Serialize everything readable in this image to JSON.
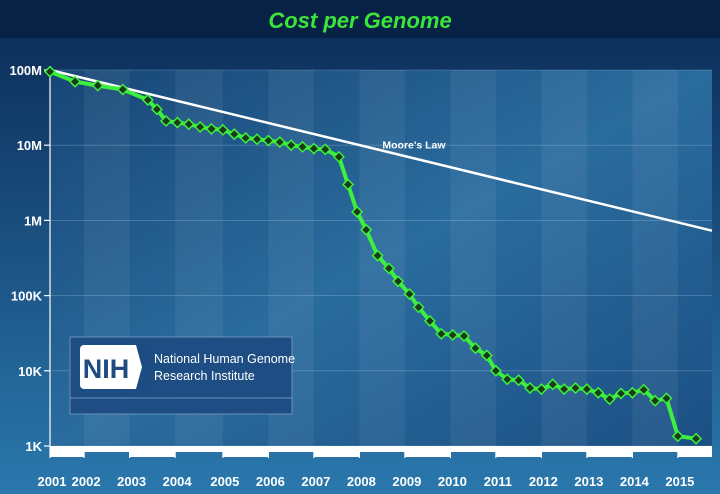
{
  "colors": {
    "bg_top": "#0b2a55",
    "bg_bottom": "#2a78ad",
    "title": "#39e639",
    "series": "#3df03d",
    "marker": "#1a3a1a",
    "moore": "#ffffff",
    "nih_box": "#1e4f86"
  },
  "nih": {
    "logo_text": "NIH",
    "line1": "National Human Genome",
    "line2": "Research Institute"
  },
  "chart_data": {
    "type": "line",
    "title": "Cost per Genome",
    "yscale": "log",
    "ylim": [
      1000,
      100000000
    ],
    "xlim": [
      2001.0,
      2015.55
    ],
    "yticks": [
      {
        "value": 1000,
        "label": "1K"
      },
      {
        "value": 10000,
        "label": "10K"
      },
      {
        "value": 100000,
        "label": "100K"
      },
      {
        "value": 1000000,
        "label": "1M"
      },
      {
        "value": 10000000,
        "label": "10M"
      },
      {
        "value": 100000000,
        "label": "100M"
      }
    ],
    "xticks": [
      {
        "value": 2001.0,
        "label": "2001"
      },
      {
        "value": 2001.75,
        "label": "2002"
      },
      {
        "value": 2002.75,
        "label": "2003"
      },
      {
        "value": 2003.75,
        "label": "2004"
      },
      {
        "value": 2004.8,
        "label": "2005"
      },
      {
        "value": 2005.8,
        "label": "2006"
      },
      {
        "value": 2006.8,
        "label": "2007"
      },
      {
        "value": 2007.8,
        "label": "2008"
      },
      {
        "value": 2008.8,
        "label": "2009"
      },
      {
        "value": 2009.8,
        "label": "2010"
      },
      {
        "value": 2010.8,
        "label": "2011"
      },
      {
        "value": 2011.8,
        "label": "2012"
      },
      {
        "value": 2012.8,
        "label": "2013"
      },
      {
        "value": 2013.8,
        "label": "2014"
      },
      {
        "value": 2014.8,
        "label": "2015"
      }
    ],
    "series": [
      {
        "points": [
          [
            2001.0,
            95000000
          ],
          [
            2001.55,
            70000000
          ],
          [
            2002.05,
            62000000
          ],
          [
            2002.6,
            55000000
          ],
          [
            2003.15,
            40000000
          ],
          [
            2003.35,
            30000000
          ],
          [
            2003.55,
            21000000
          ],
          [
            2003.8,
            20000000
          ],
          [
            2004.05,
            19000000
          ],
          [
            2004.3,
            17500000
          ],
          [
            2004.55,
            16500000
          ],
          [
            2004.8,
            16000000
          ],
          [
            2005.05,
            14000000
          ],
          [
            2005.3,
            12500000
          ],
          [
            2005.55,
            12000000
          ],
          [
            2005.8,
            11500000
          ],
          [
            2006.05,
            11000000
          ],
          [
            2006.3,
            10000000
          ],
          [
            2006.55,
            9500000
          ],
          [
            2006.8,
            9000000
          ],
          [
            2007.05,
            8800000
          ],
          [
            2007.35,
            7000000
          ],
          [
            2007.55,
            3000000
          ],
          [
            2007.75,
            1300000
          ],
          [
            2007.95,
            750000
          ],
          [
            2008.2,
            340000
          ],
          [
            2008.45,
            230000
          ],
          [
            2008.65,
            155000
          ],
          [
            2008.9,
            105000
          ],
          [
            2009.1,
            70000
          ],
          [
            2009.35,
            46000
          ],
          [
            2009.6,
            31000
          ],
          [
            2009.85,
            30000
          ],
          [
            2010.1,
            29000
          ],
          [
            2010.35,
            20000
          ],
          [
            2010.6,
            16000
          ],
          [
            2010.8,
            10000
          ],
          [
            2011.05,
            7700
          ],
          [
            2011.3,
            7500
          ],
          [
            2011.55,
            5900
          ],
          [
            2011.8,
            5700
          ],
          [
            2012.05,
            6600
          ],
          [
            2012.3,
            5700
          ],
          [
            2012.55,
            5900
          ],
          [
            2012.8,
            5700
          ],
          [
            2013.05,
            5100
          ],
          [
            2013.3,
            4200
          ],
          [
            2013.55,
            5000
          ],
          [
            2013.8,
            5100
          ],
          [
            2014.05,
            5600
          ],
          [
            2014.3,
            4000
          ],
          [
            2014.55,
            4300
          ],
          [
            2014.8,
            1350
          ],
          [
            2015.2,
            1250
          ]
        ]
      },
      {
        "name": "Moore's Law",
        "points": [
          [
            2001.0,
            100000000
          ],
          [
            2015.55,
            730000
          ]
        ]
      }
    ]
  }
}
